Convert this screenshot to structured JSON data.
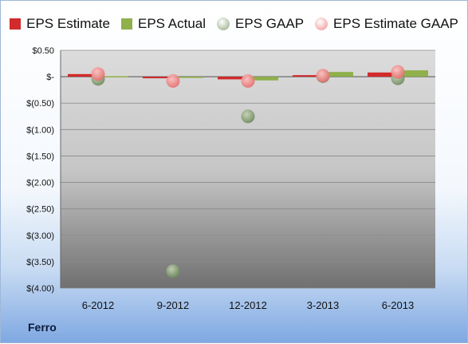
{
  "company": "Ferro",
  "chart_data": {
    "type": "bar",
    "categories": [
      "6-2012",
      "9-2012",
      "12-2012",
      "3-2013",
      "6-2013"
    ],
    "series": [
      {
        "name": "EPS Estimate",
        "kind": "bar",
        "color": "#d22b2b",
        "values": [
          0.05,
          -0.03,
          -0.05,
          0.03,
          0.08
        ]
      },
      {
        "name": "EPS Actual",
        "kind": "bar",
        "color": "#8fb04a",
        "values": [
          0.01,
          -0.02,
          -0.07,
          0.09,
          0.12
        ]
      },
      {
        "name": "EPS GAAP",
        "kind": "point",
        "color": "#8ea57c",
        "values": [
          -0.04,
          -3.68,
          -0.75,
          0.01,
          -0.03
        ]
      },
      {
        "name": "EPS Estimate GAAP",
        "kind": "point",
        "color": "#f28c8c",
        "values": [
          0.05,
          -0.08,
          -0.08,
          0.02,
          0.09
        ]
      }
    ],
    "yticks": [
      {
        "value": 0.5,
        "label": "$0.50"
      },
      {
        "value": 0,
        "label": "$-"
      },
      {
        "value": -0.5,
        "label": "$(0.50)"
      },
      {
        "value": -1.0,
        "label": "$(1.00)"
      },
      {
        "value": -1.5,
        "label": "$(1.50)"
      },
      {
        "value": -2.0,
        "label": "$(2.00)"
      },
      {
        "value": -2.5,
        "label": "$(2.50)"
      },
      {
        "value": -3.0,
        "label": "$(3.00)"
      },
      {
        "value": -3.5,
        "label": "$(3.50)"
      },
      {
        "value": -4.0,
        "label": "$(4.00)"
      }
    ],
    "ylim": [
      -4.0,
      0.5
    ],
    "grid": true,
    "legend_position": "top",
    "title": "",
    "xlabel": "",
    "ylabel": ""
  }
}
